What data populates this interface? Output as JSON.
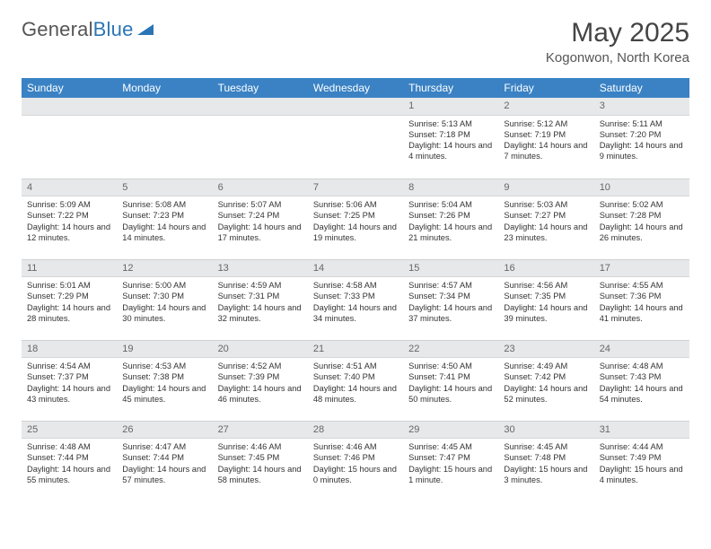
{
  "logo": {
    "text1": "General",
    "text2": "Blue"
  },
  "title": "May 2025",
  "location": "Kogonwon, North Korea",
  "colors": {
    "header_bg": "#3a82c4",
    "header_text": "#ffffff",
    "daynum_bg": "#e7e8e9",
    "text": "#333333",
    "logo_gray": "#555555",
    "logo_blue": "#2c75b5"
  },
  "weekdays": [
    "Sunday",
    "Monday",
    "Tuesday",
    "Wednesday",
    "Thursday",
    "Friday",
    "Saturday"
  ],
  "weeks": [
    [
      null,
      null,
      null,
      null,
      {
        "n": "1",
        "sr": "5:13 AM",
        "ss": "7:18 PM",
        "dl": "14 hours and 4 minutes."
      },
      {
        "n": "2",
        "sr": "5:12 AM",
        "ss": "7:19 PM",
        "dl": "14 hours and 7 minutes."
      },
      {
        "n": "3",
        "sr": "5:11 AM",
        "ss": "7:20 PM",
        "dl": "14 hours and 9 minutes."
      }
    ],
    [
      {
        "n": "4",
        "sr": "5:09 AM",
        "ss": "7:22 PM",
        "dl": "14 hours and 12 minutes."
      },
      {
        "n": "5",
        "sr": "5:08 AM",
        "ss": "7:23 PM",
        "dl": "14 hours and 14 minutes."
      },
      {
        "n": "6",
        "sr": "5:07 AM",
        "ss": "7:24 PM",
        "dl": "14 hours and 17 minutes."
      },
      {
        "n": "7",
        "sr": "5:06 AM",
        "ss": "7:25 PM",
        "dl": "14 hours and 19 minutes."
      },
      {
        "n": "8",
        "sr": "5:04 AM",
        "ss": "7:26 PM",
        "dl": "14 hours and 21 minutes."
      },
      {
        "n": "9",
        "sr": "5:03 AM",
        "ss": "7:27 PM",
        "dl": "14 hours and 23 minutes."
      },
      {
        "n": "10",
        "sr": "5:02 AM",
        "ss": "7:28 PM",
        "dl": "14 hours and 26 minutes."
      }
    ],
    [
      {
        "n": "11",
        "sr": "5:01 AM",
        "ss": "7:29 PM",
        "dl": "14 hours and 28 minutes."
      },
      {
        "n": "12",
        "sr": "5:00 AM",
        "ss": "7:30 PM",
        "dl": "14 hours and 30 minutes."
      },
      {
        "n": "13",
        "sr": "4:59 AM",
        "ss": "7:31 PM",
        "dl": "14 hours and 32 minutes."
      },
      {
        "n": "14",
        "sr": "4:58 AM",
        "ss": "7:33 PM",
        "dl": "14 hours and 34 minutes."
      },
      {
        "n": "15",
        "sr": "4:57 AM",
        "ss": "7:34 PM",
        "dl": "14 hours and 37 minutes."
      },
      {
        "n": "16",
        "sr": "4:56 AM",
        "ss": "7:35 PM",
        "dl": "14 hours and 39 minutes."
      },
      {
        "n": "17",
        "sr": "4:55 AM",
        "ss": "7:36 PM",
        "dl": "14 hours and 41 minutes."
      }
    ],
    [
      {
        "n": "18",
        "sr": "4:54 AM",
        "ss": "7:37 PM",
        "dl": "14 hours and 43 minutes."
      },
      {
        "n": "19",
        "sr": "4:53 AM",
        "ss": "7:38 PM",
        "dl": "14 hours and 45 minutes."
      },
      {
        "n": "20",
        "sr": "4:52 AM",
        "ss": "7:39 PM",
        "dl": "14 hours and 46 minutes."
      },
      {
        "n": "21",
        "sr": "4:51 AM",
        "ss": "7:40 PM",
        "dl": "14 hours and 48 minutes."
      },
      {
        "n": "22",
        "sr": "4:50 AM",
        "ss": "7:41 PM",
        "dl": "14 hours and 50 minutes."
      },
      {
        "n": "23",
        "sr": "4:49 AM",
        "ss": "7:42 PM",
        "dl": "14 hours and 52 minutes."
      },
      {
        "n": "24",
        "sr": "4:48 AM",
        "ss": "7:43 PM",
        "dl": "14 hours and 54 minutes."
      }
    ],
    [
      {
        "n": "25",
        "sr": "4:48 AM",
        "ss": "7:44 PM",
        "dl": "14 hours and 55 minutes."
      },
      {
        "n": "26",
        "sr": "4:47 AM",
        "ss": "7:44 PM",
        "dl": "14 hours and 57 minutes."
      },
      {
        "n": "27",
        "sr": "4:46 AM",
        "ss": "7:45 PM",
        "dl": "14 hours and 58 minutes."
      },
      {
        "n": "28",
        "sr": "4:46 AM",
        "ss": "7:46 PM",
        "dl": "15 hours and 0 minutes."
      },
      {
        "n": "29",
        "sr": "4:45 AM",
        "ss": "7:47 PM",
        "dl": "15 hours and 1 minute."
      },
      {
        "n": "30",
        "sr": "4:45 AM",
        "ss": "7:48 PM",
        "dl": "15 hours and 3 minutes."
      },
      {
        "n": "31",
        "sr": "4:44 AM",
        "ss": "7:49 PM",
        "dl": "15 hours and 4 minutes."
      }
    ]
  ],
  "labels": {
    "sunrise": "Sunrise: ",
    "sunset": "Sunset: ",
    "daylight": "Daylight: "
  }
}
